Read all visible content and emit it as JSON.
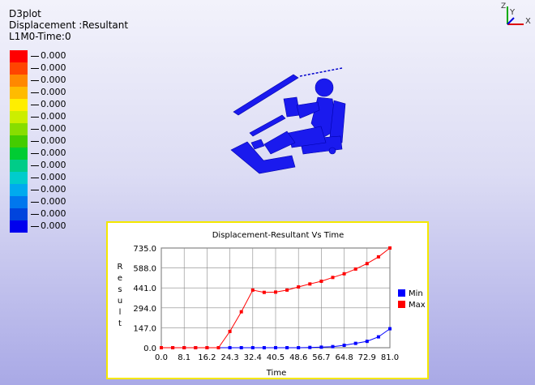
{
  "header": {
    "line1": "D3plot",
    "line2": "Displacement :Resultant",
    "line3": "L1M0-Time:0"
  },
  "fringe_legend": {
    "values": [
      "0.000",
      "0.000",
      "0.000",
      "0.000",
      "0.000",
      "0.000",
      "0.000",
      "0.000",
      "0.000",
      "0.000",
      "0.000",
      "0.000",
      "0.000",
      "0.000",
      "0.000"
    ],
    "colors": [
      "#ff0000",
      "#ff4400",
      "#ff8800",
      "#ffbb00",
      "#ffee00",
      "#ccee00",
      "#88dd00",
      "#44cc00",
      "#00cc33",
      "#00cc88",
      "#00cccc",
      "#00aaee",
      "#0077ee",
      "#0044dd",
      "#0000ee"
    ]
  },
  "triad": {
    "y_label": "Y",
    "x_label": "X",
    "z_label": "Z"
  },
  "model_colors": {
    "body": "#1a1aee"
  },
  "chart_data": {
    "type": "line",
    "title": "Displacement-Resultant Vs Time",
    "xlabel": "Time",
    "ylabel": "Result",
    "xlim": [
      0,
      81
    ],
    "ylim": [
      0,
      735
    ],
    "x_ticks": [
      "0.0",
      "8.1",
      "16.2",
      "24.3",
      "32.4",
      "40.5",
      "48.6",
      "56.7",
      "64.8",
      "72.9",
      "81.0"
    ],
    "y_ticks": [
      "0.0",
      "147.0",
      "294.0",
      "441.0",
      "588.0",
      "735.0"
    ],
    "grid": true,
    "legend_position": "right",
    "x": [
      0,
      4.05,
      8.1,
      12.15,
      16.2,
      20.25,
      24.3,
      28.35,
      32.4,
      36.45,
      40.5,
      44.55,
      48.6,
      52.65,
      56.7,
      60.75,
      64.8,
      68.85,
      72.9,
      76.95,
      81.0
    ],
    "series": [
      {
        "name": "Min",
        "color": "#0000ff",
        "values": [
          0,
          0,
          0,
          0,
          0,
          0,
          0,
          0,
          0,
          0,
          0,
          0,
          0,
          2,
          4,
          8,
          18,
          32,
          47,
          80,
          140
        ]
      },
      {
        "name": "Max",
        "color": "#ff0000",
        "values": [
          0,
          0,
          0,
          0,
          0,
          0,
          120,
          265,
          425,
          408,
          410,
          425,
          448,
          470,
          490,
          518,
          545,
          580,
          620,
          670,
          735
        ]
      }
    ]
  }
}
